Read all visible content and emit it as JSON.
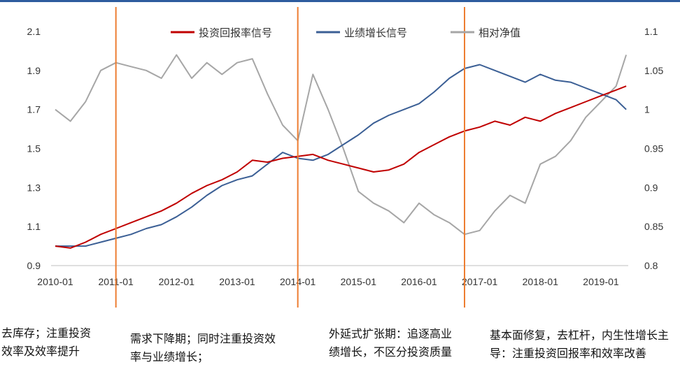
{
  "chart_data": {
    "type": "line",
    "title": "",
    "x_ticks": [
      "2010-01",
      "2011-01",
      "2012-01",
      "2013-01",
      "2014-01",
      "2015-01",
      "2016-01",
      "2017-01",
      "2018-01",
      "2019-01"
    ],
    "left_axis": {
      "ylim": [
        0.9,
        2.1
      ],
      "ticks": [
        "0.9",
        "1.1",
        "1.3",
        "1.5",
        "1.7",
        "1.9",
        "2.1"
      ]
    },
    "right_axis": {
      "ylim": [
        0.8,
        1.1
      ],
      "ticks": [
        "0.8",
        "0.85",
        "0.9",
        "0.95",
        "1",
        "1.05",
        "1.1"
      ]
    },
    "legend_position": "top-center",
    "grid": false,
    "series": [
      {
        "name": "投资回报率信号",
        "axis": "left",
        "color": "#c00000",
        "points": [
          [
            "2010-01",
            1.0
          ],
          [
            "2010-04",
            0.99
          ],
          [
            "2010-07",
            1.02
          ],
          [
            "2010-10",
            1.06
          ],
          [
            "2011-01",
            1.09
          ],
          [
            "2011-04",
            1.12
          ],
          [
            "2011-07",
            1.15
          ],
          [
            "2011-10",
            1.18
          ],
          [
            "2012-01",
            1.22
          ],
          [
            "2012-04",
            1.27
          ],
          [
            "2012-07",
            1.31
          ],
          [
            "2012-10",
            1.34
          ],
          [
            "2013-01",
            1.38
          ],
          [
            "2013-04",
            1.44
          ],
          [
            "2013-07",
            1.43
          ],
          [
            "2013-10",
            1.45
          ],
          [
            "2014-01",
            1.46
          ],
          [
            "2014-04",
            1.47
          ],
          [
            "2014-07",
            1.44
          ],
          [
            "2014-10",
            1.42
          ],
          [
            "2015-01",
            1.4
          ],
          [
            "2015-04",
            1.38
          ],
          [
            "2015-07",
            1.39
          ],
          [
            "2015-10",
            1.42
          ],
          [
            "2016-01",
            1.48
          ],
          [
            "2016-04",
            1.52
          ],
          [
            "2016-07",
            1.56
          ],
          [
            "2016-10",
            1.59
          ],
          [
            "2017-01",
            1.61
          ],
          [
            "2017-04",
            1.64
          ],
          [
            "2017-07",
            1.62
          ],
          [
            "2017-10",
            1.66
          ],
          [
            "2018-01",
            1.64
          ],
          [
            "2018-04",
            1.68
          ],
          [
            "2018-07",
            1.71
          ],
          [
            "2018-10",
            1.74
          ],
          [
            "2019-01",
            1.77
          ],
          [
            "2019-04",
            1.8
          ],
          [
            "2019-06",
            1.82
          ]
        ]
      },
      {
        "name": "业绩增长信号",
        "axis": "left",
        "color": "#3b5f95",
        "points": [
          [
            "2010-01",
            1.0
          ],
          [
            "2010-04",
            1.0
          ],
          [
            "2010-07",
            1.0
          ],
          [
            "2010-10",
            1.02
          ],
          [
            "2011-01",
            1.04
          ],
          [
            "2011-04",
            1.06
          ],
          [
            "2011-07",
            1.09
          ],
          [
            "2011-10",
            1.11
          ],
          [
            "2012-01",
            1.15
          ],
          [
            "2012-04",
            1.2
          ],
          [
            "2012-07",
            1.26
          ],
          [
            "2012-10",
            1.31
          ],
          [
            "2013-01",
            1.34
          ],
          [
            "2013-04",
            1.36
          ],
          [
            "2013-07",
            1.42
          ],
          [
            "2013-10",
            1.48
          ],
          [
            "2014-01",
            1.45
          ],
          [
            "2014-04",
            1.44
          ],
          [
            "2014-07",
            1.47
          ],
          [
            "2014-10",
            1.52
          ],
          [
            "2015-01",
            1.57
          ],
          [
            "2015-04",
            1.63
          ],
          [
            "2015-07",
            1.67
          ],
          [
            "2015-10",
            1.7
          ],
          [
            "2016-01",
            1.73
          ],
          [
            "2016-04",
            1.79
          ],
          [
            "2016-07",
            1.86
          ],
          [
            "2016-10",
            1.91
          ],
          [
            "2017-01",
            1.93
          ],
          [
            "2017-04",
            1.9
          ],
          [
            "2017-07",
            1.87
          ],
          [
            "2017-10",
            1.84
          ],
          [
            "2018-01",
            1.88
          ],
          [
            "2018-04",
            1.85
          ],
          [
            "2018-07",
            1.84
          ],
          [
            "2018-10",
            1.81
          ],
          [
            "2019-01",
            1.78
          ],
          [
            "2019-04",
            1.75
          ],
          [
            "2019-06",
            1.7
          ]
        ]
      },
      {
        "name": "相对净值",
        "axis": "right",
        "color": "#a6a6a6",
        "points": [
          [
            "2010-01",
            1.0
          ],
          [
            "2010-04",
            0.985
          ],
          [
            "2010-07",
            1.01
          ],
          [
            "2010-10",
            1.05
          ],
          [
            "2011-01",
            1.06
          ],
          [
            "2011-04",
            1.055
          ],
          [
            "2011-07",
            1.05
          ],
          [
            "2011-10",
            1.04
          ],
          [
            "2012-01",
            1.07
          ],
          [
            "2012-04",
            1.04
          ],
          [
            "2012-07",
            1.06
          ],
          [
            "2012-10",
            1.045
          ],
          [
            "2013-01",
            1.06
          ],
          [
            "2013-04",
            1.065
          ],
          [
            "2013-07",
            1.02
          ],
          [
            "2013-10",
            0.98
          ],
          [
            "2014-01",
            0.96
          ],
          [
            "2014-04",
            1.045
          ],
          [
            "2014-07",
            1.0
          ],
          [
            "2014-10",
            0.95
          ],
          [
            "2015-01",
            0.895
          ],
          [
            "2015-04",
            0.88
          ],
          [
            "2015-07",
            0.87
          ],
          [
            "2015-10",
            0.855
          ],
          [
            "2016-01",
            0.88
          ],
          [
            "2016-04",
            0.865
          ],
          [
            "2016-07",
            0.855
          ],
          [
            "2016-10",
            0.84
          ],
          [
            "2017-01",
            0.845
          ],
          [
            "2017-04",
            0.87
          ],
          [
            "2017-07",
            0.89
          ],
          [
            "2017-10",
            0.88
          ],
          [
            "2018-01",
            0.93
          ],
          [
            "2018-04",
            0.94
          ],
          [
            "2018-07",
            0.96
          ],
          [
            "2018-10",
            0.99
          ],
          [
            "2019-01",
            1.01
          ],
          [
            "2019-04",
            1.03
          ],
          [
            "2019-06",
            1.07
          ]
        ]
      }
    ],
    "period_dividers": [
      "2011-01",
      "2014-01",
      "2016-10"
    ],
    "divider_color": "#ed7d31",
    "annotations": [
      "去库存；注重投资效率及效率提升",
      "需求下降期；同时注重投资效率与业绩增长；",
      "外延式扩张期：追逐高业绩增长，不区分投资质量",
      "基本面修复，去杠杆，内生性增长主导：注重投资回报率和效率改善"
    ]
  }
}
